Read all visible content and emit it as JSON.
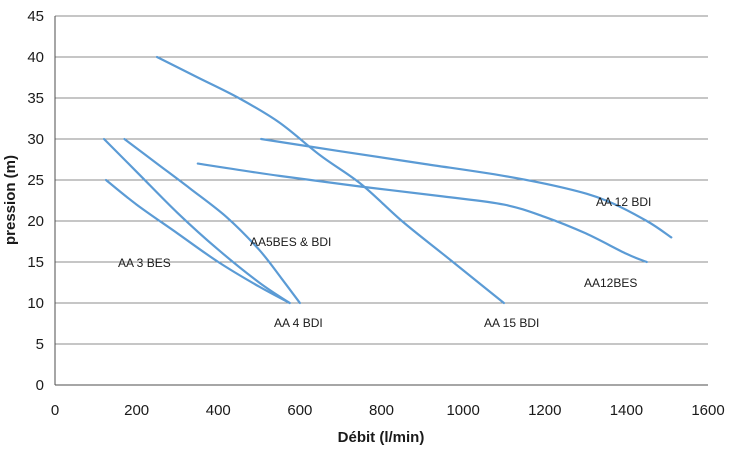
{
  "chart_data": {
    "type": "line",
    "title": "",
    "xlabel": "Débit (l/min)",
    "ylabel": "pression (m)",
    "xlim": [
      0,
      1600
    ],
    "ylim": [
      0,
      45
    ],
    "xticks": [
      0,
      200,
      400,
      600,
      800,
      1000,
      1200,
      1400,
      1600
    ],
    "yticks": [
      0,
      5,
      10,
      15,
      20,
      25,
      30,
      35,
      40,
      45
    ],
    "grid": "horizontal",
    "line_color": "#5b9bd5",
    "series": [
      {
        "name": "AA 3 BES",
        "x": [
          125,
          200,
          300,
          400,
          500,
          575
        ],
        "y": [
          25,
          22,
          18.5,
          15,
          12,
          10
        ]
      },
      {
        "name": "AA 4 BDI",
        "x": [
          120,
          200,
          300,
          400,
          500,
          575
        ],
        "y": [
          30,
          26,
          21,
          16.5,
          12.5,
          10
        ]
      },
      {
        "name": "AA5BES & BDI",
        "x": [
          170,
          250,
          330,
          420,
          500,
          555,
          600
        ],
        "y": [
          30,
          27,
          24,
          20.5,
          16.5,
          13,
          10
        ]
      },
      {
        "name": "AA 15 BDI",
        "x": [
          250,
          350,
          450,
          550,
          650,
          750,
          850,
          950,
          1050,
          1100
        ],
        "y": [
          40,
          37.5,
          35,
          32,
          28,
          24.5,
          20,
          16,
          12,
          10
        ]
      },
      {
        "name": "AA 12 BDI",
        "x": [
          505,
          700,
          900,
          1100,
          1250,
          1350,
          1450,
          1510
        ],
        "y": [
          30,
          28.5,
          27,
          25.5,
          24,
          22.5,
          20,
          18
        ]
      },
      {
        "name": "AA12BES",
        "x": [
          350,
          550,
          750,
          950,
          1100,
          1200,
          1300,
          1400,
          1450
        ],
        "y": [
          27,
          25.5,
          24.2,
          23,
          22,
          20.5,
          18.5,
          16,
          15
        ]
      }
    ],
    "annotations": [
      {
        "text": "AA 3 BES",
        "series": "AA 3 BES"
      },
      {
        "text": "AA 4 BDI",
        "series": "AA 4 BDI"
      },
      {
        "text": "AA5BES & BDI",
        "series": "AA5BES & BDI"
      },
      {
        "text": "AA 15 BDI",
        "series": "AA 15 BDI"
      },
      {
        "text": "AA 12 BDI",
        "series": "AA 12 BDI"
      },
      {
        "text": "AA12BES",
        "series": "AA12BES"
      }
    ]
  }
}
